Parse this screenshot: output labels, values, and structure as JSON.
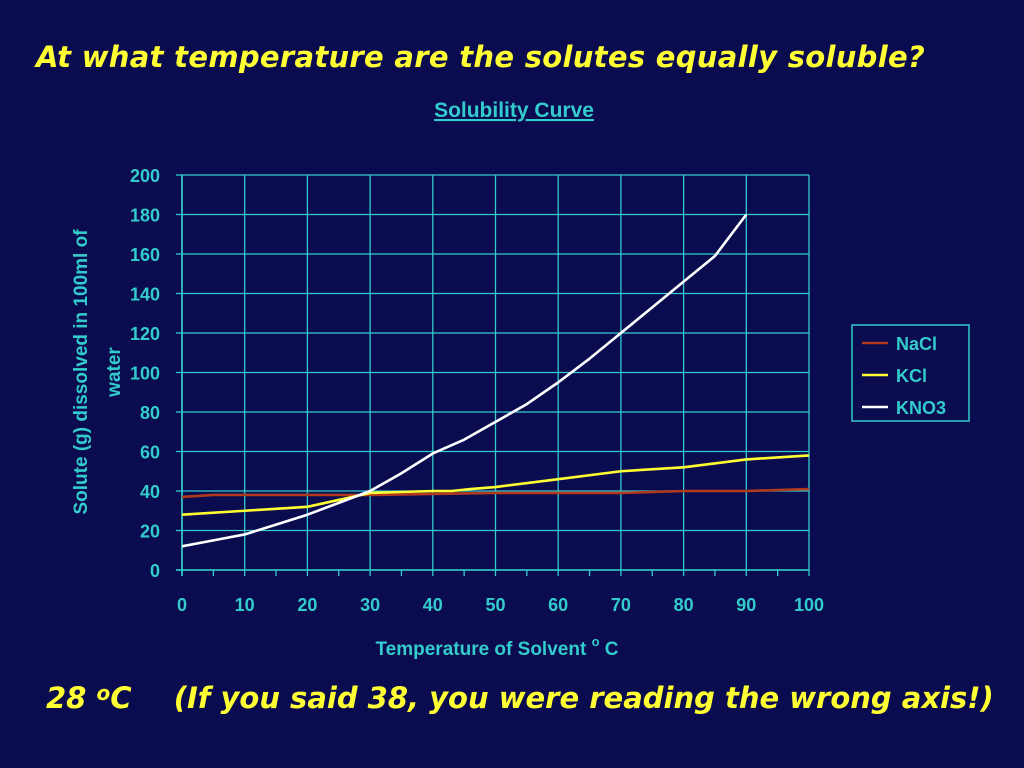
{
  "question": "At what temperature are the solutes equally soluble?",
  "answer": {
    "value": "28",
    "superscript": "o",
    "unit": "C",
    "note": "(If you said 38, you were reading the wrong axis!)"
  },
  "colors": {
    "background": "#0b0b4f",
    "text_yellow": "#ffff33",
    "axis_teal": "#33cccc",
    "NaCl": "#b03a1e",
    "KCl": "#ffff33",
    "KNO3": "#ffffff"
  },
  "chart_data": {
    "type": "line",
    "title": "Solubility Curve",
    "xlabel": "Temperature of Solvent",
    "xlabel_superscript": "o",
    "xlabel_unit": "C",
    "ylabel": "Solute (g) dissolved in 100ml of water",
    "xlim": [
      0,
      100
    ],
    "ylim": [
      0,
      200
    ],
    "x_ticks": [
      0,
      10,
      20,
      30,
      40,
      50,
      60,
      70,
      80,
      90,
      100
    ],
    "y_ticks": [
      0,
      20,
      40,
      60,
      80,
      100,
      120,
      140,
      160,
      180,
      200
    ],
    "grid": true,
    "legend_position": "right",
    "series": [
      {
        "name": "NaCl",
        "x": [
          0,
          5,
          10,
          20,
          30,
          40,
          50,
          60,
          70,
          80,
          90,
          100
        ],
        "y": [
          37,
          38,
          38,
          38,
          38,
          38.5,
          39,
          39,
          39,
          40,
          40,
          41
        ]
      },
      {
        "name": "KCl",
        "x": [
          0,
          10,
          20,
          30,
          40,
          43,
          46,
          50,
          60,
          70,
          80,
          90,
          100
        ],
        "y": [
          28,
          30,
          32,
          39,
          40,
          40,
          41,
          42,
          46,
          50,
          52,
          56,
          58
        ]
      },
      {
        "name": "KNO3",
        "x": [
          0,
          5,
          10,
          15,
          20,
          25,
          30,
          35,
          40,
          45,
          50,
          55,
          60,
          65,
          70,
          75,
          80,
          85,
          90
        ],
        "y": [
          12,
          15,
          18,
          23,
          28,
          34,
          40,
          49,
          59,
          66,
          75,
          84,
          95,
          107,
          120,
          133,
          146,
          159,
          180
        ]
      }
    ]
  }
}
